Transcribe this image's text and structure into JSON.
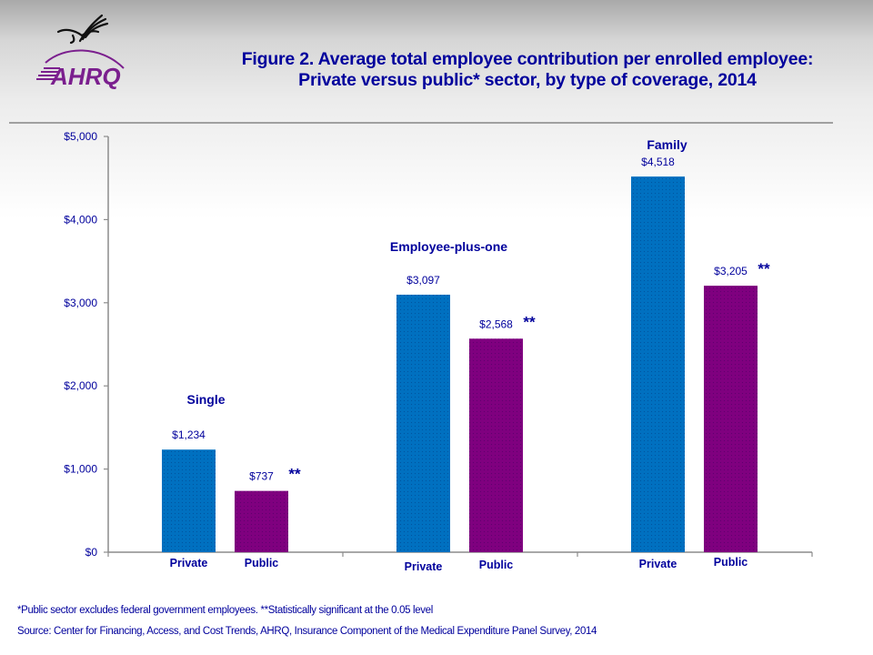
{
  "header": {
    "logo": {
      "icon": "hhs-eagle-icon",
      "text": "AHRQ",
      "color": "#7b1f8e"
    },
    "title_line1": "Figure 2. Average total employee contribution per enrolled employee:",
    "title_line2": "Private versus public* sector, by type of coverage, 2014"
  },
  "colors": {
    "private": "#0070c0",
    "public": "#7f007f",
    "text": "#00009c",
    "axis": "#8c8c8c"
  },
  "chart_data": {
    "type": "bar",
    "title": "Figure 2. Average total employee contribution per enrolled employee: Private versus public* sector, by type of coverage, 2014",
    "xlabel": "",
    "ylabel": "",
    "ylim": [
      0,
      5000
    ],
    "yticks": [
      0,
      1000,
      2000,
      3000,
      4000,
      5000
    ],
    "ytick_labels": [
      "$0",
      "$1,000",
      "$2,000",
      "$3,000",
      "$4,000",
      "$5,000"
    ],
    "grid": false,
    "legend": "none",
    "groups": [
      {
        "name": "Single",
        "bars": [
          {
            "category": "Private",
            "value": 1234,
            "label": "$1,234",
            "significant": false
          },
          {
            "category": "Public",
            "value": 737,
            "label": "$737",
            "significant": true
          }
        ]
      },
      {
        "name": "Employee-plus-one",
        "bars": [
          {
            "category": "Private",
            "value": 3097,
            "label": "$3,097",
            "significant": false
          },
          {
            "category": "Public",
            "value": 2568,
            "label": "$2,568",
            "significant": true
          }
        ]
      },
      {
        "name": "Family",
        "bars": [
          {
            "category": "Private",
            "value": 4518,
            "label": "$4,518",
            "significant": false
          },
          {
            "category": "Public",
            "value": 3205,
            "label": "$3,205",
            "significant": true
          }
        ]
      }
    ],
    "significance_marker": "**"
  },
  "footnotes": {
    "note": "*Public sector excludes federal government employees. **Statistically significant at the 0.05 level",
    "source": "Source: Center for Financing, Access, and Cost Trends, AHRQ, Insurance Component of the Medical Expenditure Panel Survey,  2014"
  }
}
